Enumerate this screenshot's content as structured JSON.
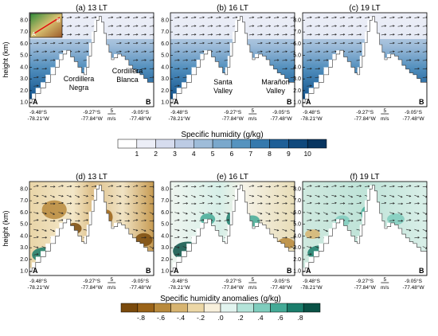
{
  "figure": {
    "ylabel": "height (km)",
    "yticks": [
      "1.0",
      "2.0",
      "3.0",
      "4.0",
      "5.0",
      "6.0",
      "7.0",
      "8.0"
    ],
    "top_panels": [
      {
        "title": "(a) 13 LT"
      },
      {
        "title": "(b) 16 LT"
      },
      {
        "title": "(c) 19 LT"
      }
    ],
    "bottom_panels": [
      {
        "title": "(d) 13 LT"
      },
      {
        "title": "(e) 16 LT"
      },
      {
        "title": "(f) 19 LT"
      }
    ],
    "corner_labels": {
      "left": "A",
      "right": "B"
    },
    "xticks": [
      {
        "lat": "-9.48°S",
        "lon": "-78.21°W"
      },
      {
        "lat": "-9.27°S",
        "lon": "-77.84°W"
      },
      {
        "lat": "-9.05°S",
        "lon": "-77.48°W"
      }
    ],
    "ref_vector": {
      "value": "5",
      "unit": "m/s"
    },
    "annotations": {
      "cordillera_negra": [
        "Cordillera",
        "Negra"
      ],
      "cordillera_blanca": [
        "Cordillera",
        "Blanca"
      ],
      "santa_valley": [
        "Santa",
        "Valley"
      ],
      "maranon_valley": [
        "Marañon",
        "Valley"
      ]
    },
    "inset_labels": {
      "a": "A",
      "b": "B"
    }
  },
  "colorbar_top": {
    "label": "Specific humidity (g/kg)",
    "ticks": [
      "1",
      "2",
      "3",
      "4",
      "5",
      "6",
      "7",
      "8",
      "9",
      "10"
    ],
    "colors": [
      "#ffffff",
      "#eceef7",
      "#d6dcee",
      "#bccbe4",
      "#9ebcd9",
      "#7aa8cc",
      "#5593bf",
      "#3579ad",
      "#1e5f97",
      "#10497c",
      "#083560"
    ]
  },
  "colorbar_bottom": {
    "label": "Specific humidity anomalies (g/kg)",
    "ticks": [
      "-.8",
      "-.6",
      "-.4",
      "-.2",
      ".0",
      ".2",
      ".4",
      ".6",
      ".8"
    ],
    "colors": [
      "#7a4a0c",
      "#9a6318",
      "#b98a3c",
      "#d7b470",
      "#ecd7a6",
      "#f8f0dc",
      "#e2f4ef",
      "#b4e4d9",
      "#7fcdbd",
      "#44aa96",
      "#1b7d6b",
      "#0a5246"
    ]
  }
}
